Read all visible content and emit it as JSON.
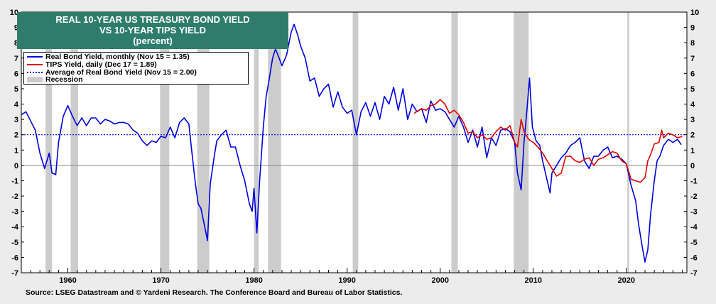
{
  "chart_data": {
    "type": "line",
    "title": "REAL 10-YEAR US TREASURY BOND YIELD",
    "subtitle": "VS 10-YEAR TIPS YIELD",
    "unit_label": "(percent)",
    "ylim": [
      -7,
      10
    ],
    "xlim": [
      1955,
      2026.5
    ],
    "yticks": [
      -7,
      -6,
      -5,
      -4,
      -3,
      -2,
      -1,
      0,
      1,
      2,
      3,
      4,
      5,
      6,
      7,
      8,
      9,
      10
    ],
    "xticks": [
      1960,
      1970,
      1980,
      1990,
      2000,
      2010,
      2020
    ],
    "average": 2.0,
    "legend": [
      {
        "label": "Real Bond Yield, monthly (Nov 15 = 1.35)",
        "color": "#0000e0",
        "style": "solid"
      },
      {
        "label": "TIPS Yield, daily (Dec 17 = 1.89)",
        "color": "#e00000",
        "style": "solid"
      },
      {
        "label": "Average of Real Bond Yield (Nov 15 = 2.00)",
        "color": "#0000e0",
        "style": "dotted"
      },
      {
        "label": "Recession",
        "color": "#cccccc",
        "style": "box"
      }
    ],
    "recessions": [
      [
        1957.6,
        1958.3
      ],
      [
        1960.3,
        1961.1
      ],
      [
        1969.9,
        1970.9
      ],
      [
        1973.9,
        1975.2
      ],
      [
        1980.0,
        1980.5
      ],
      [
        1981.5,
        1982.9
      ],
      [
        1990.6,
        1991.2
      ],
      [
        2001.2,
        2001.9
      ],
      [
        2007.9,
        2009.5
      ],
      [
        2020.1,
        2020.3
      ]
    ],
    "series": [
      {
        "name": "Real Bond Yield",
        "color": "#0000e0",
        "points": [
          [
            1955,
            3.3
          ],
          [
            1955.5,
            3.5
          ],
          [
            1956,
            2.9
          ],
          [
            1956.5,
            2.3
          ],
          [
            1957,
            0.8
          ],
          [
            1957.5,
            -0.2
          ],
          [
            1958,
            0.8
          ],
          [
            1958.3,
            -0.5
          ],
          [
            1958.7,
            -0.6
          ],
          [
            1959,
            1.5
          ],
          [
            1959.5,
            3.2
          ],
          [
            1960,
            3.9
          ],
          [
            1960.5,
            3.2
          ],
          [
            1961,
            2.6
          ],
          [
            1961.5,
            3.1
          ],
          [
            1962,
            2.6
          ],
          [
            1962.5,
            3.1
          ],
          [
            1963,
            3.1
          ],
          [
            1963.5,
            2.7
          ],
          [
            1964,
            3.0
          ],
          [
            1964.5,
            2.9
          ],
          [
            1965,
            2.7
          ],
          [
            1965.5,
            2.8
          ],
          [
            1966,
            2.8
          ],
          [
            1966.5,
            2.7
          ],
          [
            1967,
            2.3
          ],
          [
            1967.5,
            2.1
          ],
          [
            1968,
            1.6
          ],
          [
            1968.5,
            1.3
          ],
          [
            1969,
            1.6
          ],
          [
            1969.5,
            1.5
          ],
          [
            1970,
            1.9
          ],
          [
            1970.5,
            1.8
          ],
          [
            1971,
            2.5
          ],
          [
            1971.5,
            1.8
          ],
          [
            1972,
            2.8
          ],
          [
            1972.5,
            3.1
          ],
          [
            1973,
            2.7
          ],
          [
            1973.3,
            1.0
          ],
          [
            1973.7,
            -1.2
          ],
          [
            1974,
            -2.5
          ],
          [
            1974.3,
            -2.8
          ],
          [
            1974.7,
            -4.0
          ],
          [
            1975,
            -4.9
          ],
          [
            1975.3,
            -1.2
          ],
          [
            1975.7,
            0.5
          ],
          [
            1976,
            1.6
          ],
          [
            1976.5,
            2.0
          ],
          [
            1977,
            2.3
          ],
          [
            1977.5,
            1.2
          ],
          [
            1978,
            1.2
          ],
          [
            1978.5,
            0.0
          ],
          [
            1979,
            -1.0
          ],
          [
            1979.5,
            -2.5
          ],
          [
            1979.8,
            -3.0
          ],
          [
            1980,
            -1.5
          ],
          [
            1980.3,
            -4.4
          ],
          [
            1980.6,
            -1.0
          ],
          [
            1981,
            2.5
          ],
          [
            1981.3,
            4.5
          ],
          [
            1981.6,
            5.5
          ],
          [
            1982,
            7.0
          ],
          [
            1982.3,
            7.6
          ],
          [
            1982.7,
            7.0
          ],
          [
            1983,
            6.5
          ],
          [
            1983.5,
            7.2
          ],
          [
            1984,
            8.7
          ],
          [
            1984.3,
            9.2
          ],
          [
            1984.7,
            8.5
          ],
          [
            1985,
            7.8
          ],
          [
            1985.5,
            7.0
          ],
          [
            1986,
            5.5
          ],
          [
            1986.5,
            5.7
          ],
          [
            1987,
            4.5
          ],
          [
            1987.5,
            5.0
          ],
          [
            1988,
            5.3
          ],
          [
            1988.5,
            3.8
          ],
          [
            1989,
            4.8
          ],
          [
            1989.5,
            3.8
          ],
          [
            1990,
            3.4
          ],
          [
            1990.5,
            3.6
          ],
          [
            1991,
            2.0
          ],
          [
            1991.5,
            3.5
          ],
          [
            1992,
            4.1
          ],
          [
            1992.5,
            3.2
          ],
          [
            1993,
            4.1
          ],
          [
            1993.5,
            3.0
          ],
          [
            1994,
            4.5
          ],
          [
            1994.5,
            4.0
          ],
          [
            1995,
            5.1
          ],
          [
            1995.5,
            3.6
          ],
          [
            1996,
            5.0
          ],
          [
            1996.5,
            3.0
          ],
          [
            1997,
            4.0
          ],
          [
            1997.5,
            3.5
          ],
          [
            1998,
            3.7
          ],
          [
            1998.5,
            2.8
          ],
          [
            1999,
            4.2
          ],
          [
            1999.5,
            3.6
          ],
          [
            2000,
            3.7
          ],
          [
            2000.5,
            3.5
          ],
          [
            2001,
            3.0
          ],
          [
            2001.5,
            2.5
          ],
          [
            2002,
            3.2
          ],
          [
            2002.5,
            2.5
          ],
          [
            2003,
            1.5
          ],
          [
            2003.5,
            2.3
          ],
          [
            2004,
            1.2
          ],
          [
            2004.5,
            2.5
          ],
          [
            2005,
            0.5
          ],
          [
            2005.5,
            1.8
          ],
          [
            2006,
            1.3
          ],
          [
            2006.5,
            2.3
          ],
          [
            2007,
            2.4
          ],
          [
            2007.5,
            2.2
          ],
          [
            2008,
            1.5
          ],
          [
            2008.3,
            -0.5
          ],
          [
            2008.7,
            -1.6
          ],
          [
            2009,
            1.5
          ],
          [
            2009.3,
            3.5
          ],
          [
            2009.6,
            5.7
          ],
          [
            2009.9,
            2.5
          ],
          [
            2010.3,
            1.6
          ],
          [
            2010.7,
            1.3
          ],
          [
            2011,
            0.3
          ],
          [
            2011.5,
            -1.0
          ],
          [
            2011.8,
            -1.8
          ],
          [
            2012,
            -0.5
          ],
          [
            2012.5,
            0.0
          ],
          [
            2013,
            0.5
          ],
          [
            2013.5,
            0.8
          ],
          [
            2014,
            1.3
          ],
          [
            2014.5,
            1.5
          ],
          [
            2015,
            1.8
          ],
          [
            2015.5,
            0.3
          ],
          [
            2016,
            -0.2
          ],
          [
            2016.5,
            0.6
          ],
          [
            2017,
            0.6
          ],
          [
            2017.5,
            1.0
          ],
          [
            2018,
            1.2
          ],
          [
            2018.5,
            0.5
          ],
          [
            2019,
            0.6
          ],
          [
            2019.5,
            0.4
          ],
          [
            2020,
            0.1
          ],
          [
            2020.5,
            -1.3
          ],
          [
            2021,
            -2.3
          ],
          [
            2021.3,
            -3.8
          ],
          [
            2021.7,
            -5.3
          ],
          [
            2022,
            -6.3
          ],
          [
            2022.3,
            -5.5
          ],
          [
            2022.6,
            -3.2
          ],
          [
            2023,
            -1.0
          ],
          [
            2023.3,
            0.3
          ],
          [
            2023.6,
            0.6
          ],
          [
            2024,
            1.3
          ],
          [
            2024.5,
            1.7
          ],
          [
            2025,
            1.5
          ],
          [
            2025.5,
            1.7
          ],
          [
            2025.9,
            1.35
          ]
        ]
      },
      {
        "name": "TIPS Yield",
        "color": "#e00000",
        "points": [
          [
            1997.2,
            3.4
          ],
          [
            1997.7,
            3.6
          ],
          [
            1998,
            3.7
          ],
          [
            1998.5,
            3.6
          ],
          [
            1999,
            3.9
          ],
          [
            1999.5,
            4.0
          ],
          [
            2000,
            4.3
          ],
          [
            2000.5,
            4.0
          ],
          [
            2001,
            3.4
          ],
          [
            2001.5,
            3.6
          ],
          [
            2002,
            3.3
          ],
          [
            2002.5,
            2.8
          ],
          [
            2003,
            2.1
          ],
          [
            2003.5,
            2.2
          ],
          [
            2004,
            1.8
          ],
          [
            2004.5,
            2.0
          ],
          [
            2005,
            1.7
          ],
          [
            2005.5,
            1.8
          ],
          [
            2006,
            2.2
          ],
          [
            2006.5,
            2.5
          ],
          [
            2007,
            2.3
          ],
          [
            2007.5,
            2.6
          ],
          [
            2008,
            1.5
          ],
          [
            2008.3,
            1.2
          ],
          [
            2008.7,
            3.0
          ],
          [
            2009,
            2.2
          ],
          [
            2009.5,
            1.7
          ],
          [
            2010,
            1.5
          ],
          [
            2010.5,
            1.2
          ],
          [
            2011,
            0.8
          ],
          [
            2011.5,
            0.3
          ],
          [
            2012,
            -0.2
          ],
          [
            2012.5,
            -0.7
          ],
          [
            2013,
            -0.5
          ],
          [
            2013.5,
            0.6
          ],
          [
            2014,
            0.6
          ],
          [
            2014.5,
            0.3
          ],
          [
            2015,
            0.2
          ],
          [
            2015.5,
            0.4
          ],
          [
            2016,
            0.5
          ],
          [
            2016.5,
            0.0
          ],
          [
            2017,
            0.4
          ],
          [
            2017.5,
            0.5
          ],
          [
            2018,
            0.7
          ],
          [
            2018.5,
            0.9
          ],
          [
            2019,
            0.8
          ],
          [
            2019.5,
            0.3
          ],
          [
            2020,
            0.1
          ],
          [
            2020.5,
            -0.9
          ],
          [
            2021,
            -1.0
          ],
          [
            2021.5,
            -1.1
          ],
          [
            2022,
            -0.8
          ],
          [
            2022.3,
            0.3
          ],
          [
            2022.6,
            0.7
          ],
          [
            2023,
            1.4
          ],
          [
            2023.5,
            1.5
          ],
          [
            2023.8,
            2.3
          ],
          [
            2024,
            1.8
          ],
          [
            2024.5,
            2.1
          ],
          [
            2025,
            2.0
          ],
          [
            2025.5,
            1.8
          ],
          [
            2026,
            1.89
          ]
        ]
      }
    ]
  },
  "header": {
    "title_line1": "REAL 10-YEAR US TREASURY BOND YIELD",
    "title_line2": "VS 10-YEAR TIPS YIELD",
    "title_line3": "(percent)"
  },
  "footer": {
    "source": "Source: LSEG Datastream and © Yardeni Research. The Conference Board and Bureau of Labor Statistics."
  },
  "colors": {
    "background": "#ececec",
    "plot": "#ffffff",
    "title_box": "#2e7d6c",
    "recession": "#cccccc"
  }
}
